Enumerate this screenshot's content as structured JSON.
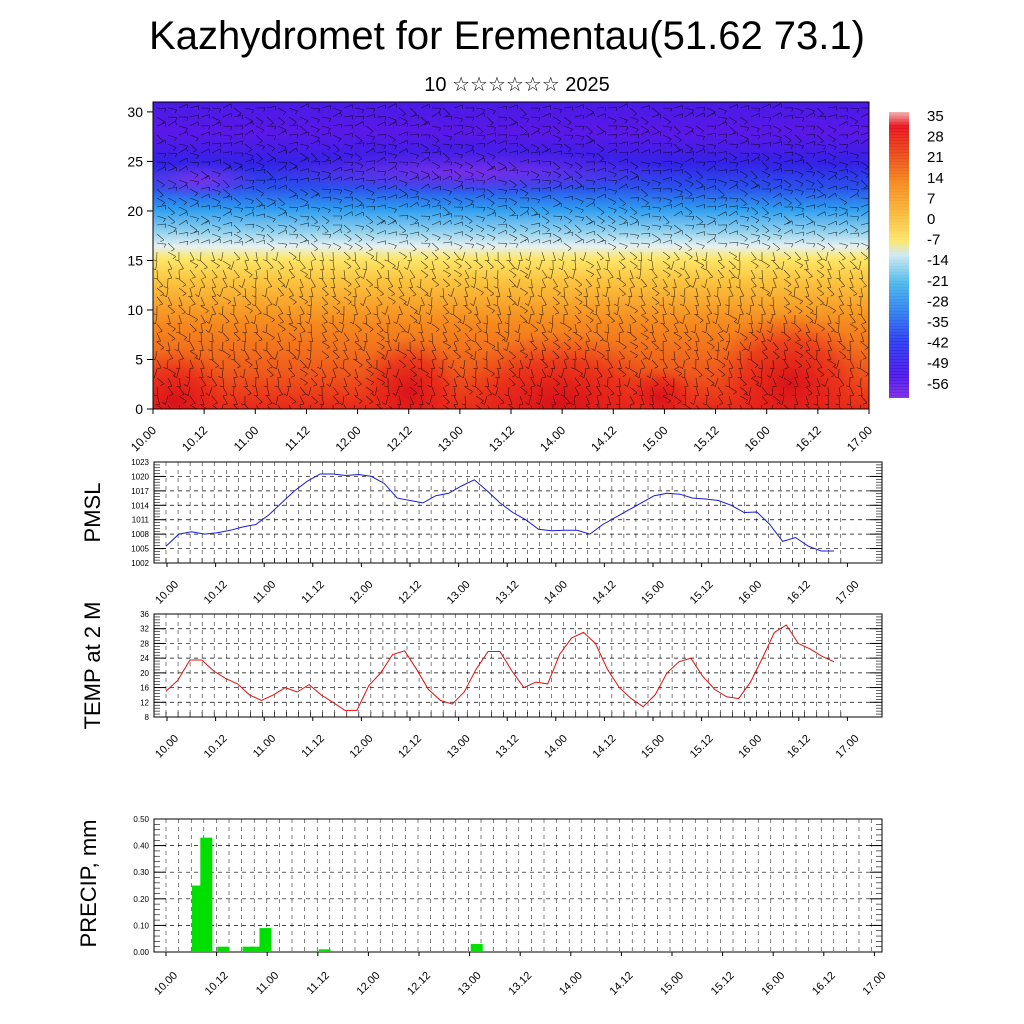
{
  "header": {
    "title": "Kazhydromet for Erementau(51.62 73.1)",
    "subtitle": "10 ☆☆☆☆☆☆ 2025"
  },
  "chart_data": [
    {
      "type": "heatmap",
      "name": "cross-section",
      "description_free": true,
      "x_tick_labels": [
        "10.00",
        "10.12",
        "11.00",
        "11.12",
        "12.00",
        "12.12",
        "13.00",
        "13.12",
        "14.00",
        "14.12",
        "15.00",
        "15.12",
        "16.00",
        "16.12",
        "17.00"
      ],
      "y_tick_labels": [
        "0",
        "5",
        "10",
        "15",
        "20",
        "25",
        "30"
      ],
      "ylim": [
        0,
        31
      ],
      "colorbar_labels": [
        "35",
        "28",
        "21",
        "14",
        "7",
        "0",
        "-7",
        "-14",
        "-21",
        "-28",
        "-35",
        "-42",
        "-49",
        "-56"
      ],
      "colors": {
        "warmest": "#e83a1c",
        "hot": "#e8101a",
        "orange": "#f58a1e",
        "yellow": "#fde66a",
        "pale": "#cfe9f2",
        "sky": "#49b6ea",
        "blue": "#1f4fe8",
        "violet": "#4512e8",
        "purple": "#8a2ce8"
      },
      "overlay": "wind barbs (black)"
    },
    {
      "type": "line",
      "ylabel": "PMSL",
      "ylim": [
        1002,
        1023
      ],
      "y_tick_labels": [
        "1002",
        "1005",
        "1008",
        "1011",
        "1014",
        "1017",
        "1020",
        "1023"
      ],
      "x_tick_labels": [
        "10.00",
        "10.12",
        "11.00",
        "11.12",
        "12.00",
        "12.12",
        "13.00",
        "13.12",
        "14.00",
        "14.12",
        "15.00",
        "15.12",
        "16.00",
        "16.12",
        "17.00"
      ],
      "line_color": "#1a1ad6",
      "series": [
        {
          "values": [
            1005.5,
            1008,
            1008.5,
            1008,
            1008.3,
            1008.8,
            1009.5,
            1010,
            1012,
            1014.5,
            1017,
            1019,
            1020.5,
            1020.5,
            1020.2,
            1020.4,
            1020,
            1018.5,
            1015.5,
            1015,
            1014.5,
            1016,
            1016.5,
            1018,
            1019.3,
            1017,
            1014.5,
            1012.5,
            1011,
            1009,
            1008.7,
            1008.8,
            1008.8,
            1008,
            1010,
            1011.5,
            1013,
            1014.5,
            1016,
            1016.5,
            1016.3,
            1015.5,
            1015.3,
            1015,
            1014,
            1012.5,
            1012.6,
            1010,
            1006.5,
            1007.3,
            1005.5,
            1004.5,
            1004.5
          ]
        }
      ]
    },
    {
      "type": "line",
      "ylabel": "TEMP at 2 M",
      "ylim": [
        8,
        36
      ],
      "y_tick_labels": [
        "8",
        "12",
        "16",
        "20",
        "24",
        "28",
        "32",
        "36"
      ],
      "x_tick_labels": [
        "10.00",
        "10.12",
        "11.00",
        "11.12",
        "12.00",
        "12.12",
        "13.00",
        "13.12",
        "14.00",
        "14.12",
        "15.00",
        "15.12",
        "16.00",
        "16.12",
        "17.00"
      ],
      "line_color": "#e01010",
      "series": [
        {
          "values": [
            15,
            18,
            23.5,
            23.5,
            20.5,
            18.5,
            17,
            14,
            12.5,
            14,
            16,
            14.8,
            16.8,
            14,
            12,
            9.8,
            9.8,
            16.5,
            20,
            25,
            26,
            21,
            15.5,
            12.5,
            11.5,
            14.8,
            21,
            25.8,
            25.8,
            20.5,
            16,
            17.5,
            17,
            25,
            29.5,
            31,
            28,
            21,
            16,
            13,
            10.8,
            14,
            20,
            23,
            24,
            19,
            15.5,
            13.5,
            13,
            17.5,
            24,
            31,
            33,
            28,
            26.5,
            24.5,
            23
          ]
        }
      ]
    },
    {
      "type": "bar",
      "ylabel": "PRECIP, mm",
      "ylim": [
        0,
        0.5
      ],
      "y_tick_labels": [
        "0.00",
        "0.10",
        "0.20",
        "0.30",
        "0.40",
        "0.50"
      ],
      "x_tick_labels": [
        "10.00",
        "10.12",
        "11.00",
        "11.12",
        "12.00",
        "12.12",
        "13.00",
        "13.12",
        "14.00",
        "14.12",
        "15.00",
        "15.12",
        "16.00",
        "16.12",
        "17.00"
      ],
      "bar_color": "#00e000",
      "bars": [
        {
          "x": 3,
          "value": 0.25
        },
        {
          "x": 4,
          "value": 0.43
        },
        {
          "x": 6,
          "value": 0.02
        },
        {
          "x": 9,
          "value": 0.02
        },
        {
          "x": 10,
          "value": 0.02
        },
        {
          "x": 11,
          "value": 0.09
        },
        {
          "x": 18,
          "value": 0.01
        },
        {
          "x": 36,
          "value": 0.03
        }
      ],
      "steps_total": 56
    }
  ]
}
